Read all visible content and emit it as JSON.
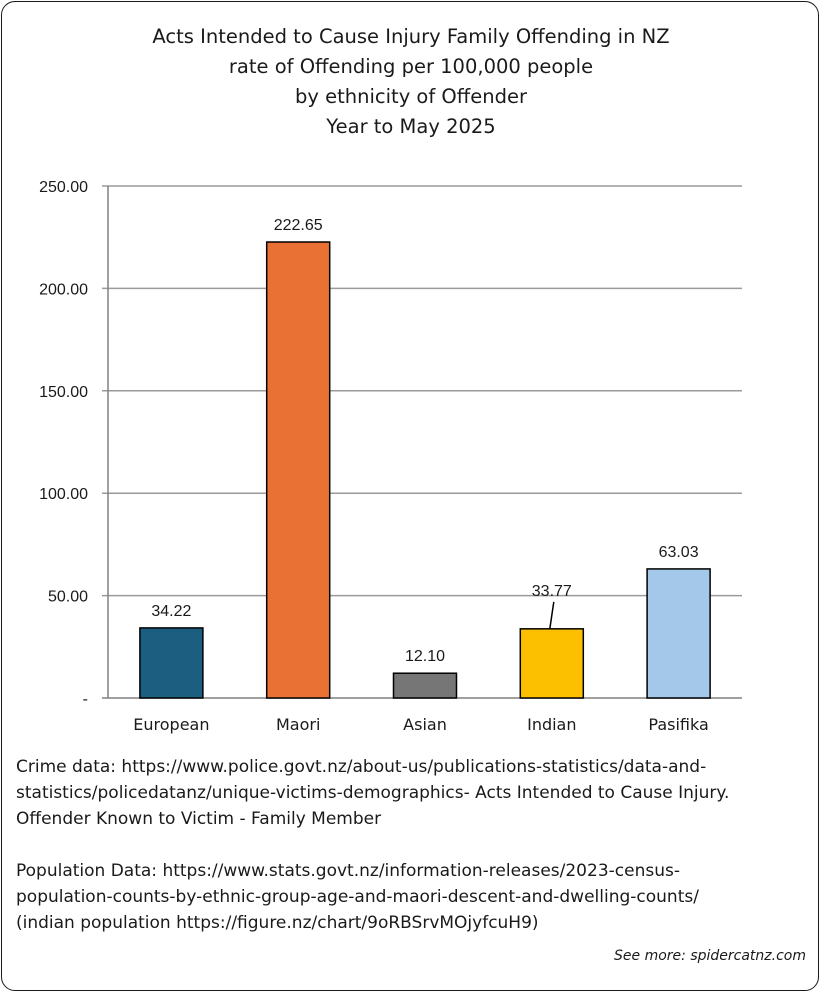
{
  "chart_data": {
    "type": "bar",
    "title_lines": [
      "Acts Intended to Cause Injury Family Offending in NZ",
      "rate of Offending per 100,000 people",
      "by ethnicity of Offender",
      "Year to May 2025"
    ],
    "categories": [
      "European",
      "Maori",
      "Asian",
      "Indian",
      "Pasifika"
    ],
    "values": [
      34.22,
      222.65,
      12.1,
      33.77,
      63.03
    ],
    "value_labels": [
      "34.22",
      "222.65",
      "12.10",
      "33.77",
      "63.03"
    ],
    "colors": [
      "#1b5e80",
      "#ea7134",
      "#767676",
      "#fdc000",
      "#a3c8ea"
    ],
    "ylim": [
      0,
      250
    ],
    "yticks": [
      0,
      50,
      100,
      150,
      200,
      250
    ],
    "ytick_labels": [
      "-",
      "50.00",
      "100.00",
      "150.00",
      "200.00",
      "250.00"
    ],
    "grid": true,
    "xlabel": "",
    "ylabel": ""
  },
  "notes": {
    "crime_line1": "Crime data: https://www.police.govt.nz/about-us/publications-statistics/data-and-",
    "crime_line2": "statistics/policedatanz/unique-victims-demographics-  Acts Intended to Cause Injury.",
    "crime_line3": "Offender Known to Victim - Family Member",
    "pop_line1": "Population Data: https://www.stats.govt.nz/information-releases/2023-census-",
    "pop_line2": "population-counts-by-ethnic-group-age-and-maori-descent-and-dwelling-counts/",
    "pop_line3": "(indian population https://figure.nz/chart/9oRBSrvMOjyfcuH9)"
  },
  "credit": "See more: spidercatnz.com"
}
